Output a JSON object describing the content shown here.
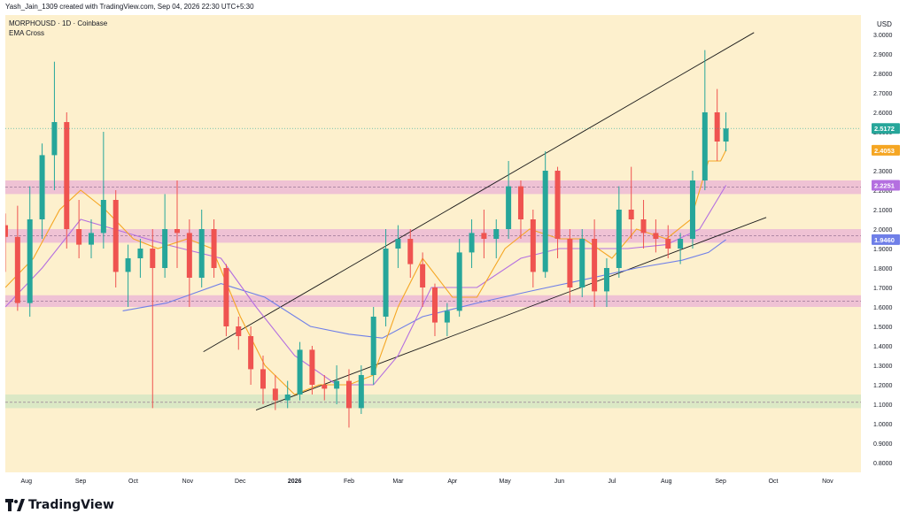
{
  "caption": "Yash_Jain_1309 created with TradingView.com, Sep 04, 2026 22:30 UTC+5:30",
  "header": {
    "symbol_line": "MORPHOUSD · 1D · Coinbase",
    "indicator": "EMA Cross"
  },
  "brand": {
    "name": "TradingView",
    "logo": "tradingview-logo"
  },
  "colors": {
    "background": "#fdf0cd",
    "up": "#26a69a",
    "down": "#ef5350",
    "ema_fast": "#f5a623",
    "ema_mid": "#b46fe0",
    "ema_slow": "#6f7fe8",
    "zone_pink": "#e9b3d6",
    "zone_green": "#cfe6c2",
    "trendline": "#1a1a1a"
  },
  "chart_data": {
    "type": "candlestick",
    "currency": "USD",
    "y_axis": {
      "min": 0.75,
      "max": 3.1,
      "ticks": [
        "0.8000",
        "0.9000",
        "1.0000",
        "1.1000",
        "1.2000",
        "1.3000",
        "1.4000",
        "1.5000",
        "1.6000",
        "1.7000",
        "1.8000",
        "1.9000",
        "2.0000",
        "2.1000",
        "2.2000",
        "2.3000",
        "2.4000",
        "2.5000",
        "2.6000",
        "2.7000",
        "2.8000",
        "2.9000",
        "3.0000"
      ]
    },
    "x_axis": {
      "ticks": [
        {
          "label": "Aug",
          "date": "2025-08-01"
        },
        {
          "label": "Sep",
          "date": "2025-09-01"
        },
        {
          "label": "Oct",
          "date": "2025-10-01"
        },
        {
          "label": "Nov",
          "date": "2025-11-01"
        },
        {
          "label": "Dec",
          "date": "2025-12-01"
        },
        {
          "label": "2026",
          "date": "2026-01-01"
        },
        {
          "label": "Feb",
          "date": "2026-02-01"
        },
        {
          "label": "Mar",
          "date": "2026-03-01"
        },
        {
          "label": "Apr",
          "date": "2026-04-01"
        },
        {
          "label": "May",
          "date": "2026-05-01"
        },
        {
          "label": "Jun",
          "date": "2026-06-01"
        },
        {
          "label": "Jul",
          "date": "2026-07-01"
        },
        {
          "label": "Aug",
          "date": "2026-08-01"
        },
        {
          "label": "Sep",
          "date": "2026-09-01"
        },
        {
          "label": "Oct",
          "date": "2026-10-01"
        },
        {
          "label": "Nov",
          "date": "2026-11-01"
        }
      ],
      "start": "2025-07-20",
      "end": "2026-11-20"
    },
    "price_labels": [
      {
        "value": "2.5172",
        "price": 2.5172,
        "color": "#26a69a"
      },
      {
        "value": "2.4053",
        "price": 2.4053,
        "color": "#f5a623"
      },
      {
        "value": "2.2251",
        "price": 2.2251,
        "color": "#b46fe0"
      },
      {
        "value": "1.9460",
        "price": 1.946,
        "color": "#6f7fe8"
      }
    ],
    "zones": [
      {
        "from": 2.18,
        "to": 2.25,
        "color": "pink",
        "mid_line": 2.215
      },
      {
        "from": 1.93,
        "to": 2.0,
        "color": "pink",
        "mid_line": 1.965
      },
      {
        "from": 1.6,
        "to": 1.66,
        "color": "pink",
        "mid_line": 1.63
      },
      {
        "from": 1.08,
        "to": 1.15,
        "color": "green",
        "mid_line": 1.11
      }
    ],
    "trendlines": [
      {
        "from": {
          "date": "2025-11-10",
          "price": 1.37
        },
        "to": {
          "date": "2026-09-20",
          "price": 3.01
        }
      },
      {
        "from": {
          "date": "2025-12-10",
          "price": 1.07
        },
        "to": {
          "date": "2026-09-27",
          "price": 2.06
        }
      }
    ],
    "ema_fast": [
      [
        "2025-07-20",
        1.7
      ],
      [
        "2025-08-05",
        1.85
      ],
      [
        "2025-08-20",
        2.1
      ],
      [
        "2025-09-01",
        2.2
      ],
      [
        "2025-09-15",
        2.1
      ],
      [
        "2025-10-01",
        1.95
      ],
      [
        "2025-10-15",
        1.9
      ],
      [
        "2025-11-01",
        1.95
      ],
      [
        "2025-11-15",
        1.9
      ],
      [
        "2025-12-01",
        1.55
      ],
      [
        "2025-12-15",
        1.3
      ],
      [
        "2026-01-01",
        1.15
      ],
      [
        "2026-01-15",
        1.2
      ],
      [
        "2026-02-01",
        1.2
      ],
      [
        "2026-02-15",
        1.25
      ],
      [
        "2026-03-01",
        1.6
      ],
      [
        "2026-03-15",
        1.85
      ],
      [
        "2026-04-01",
        1.65
      ],
      [
        "2026-04-15",
        1.65
      ],
      [
        "2026-05-01",
        1.9
      ],
      [
        "2026-05-15",
        2.0
      ],
      [
        "2026-06-01",
        1.95
      ],
      [
        "2026-06-15",
        1.95
      ],
      [
        "2026-07-01",
        1.85
      ],
      [
        "2026-07-15",
        2.0
      ],
      [
        "2026-08-01",
        1.95
      ],
      [
        "2026-08-15",
        2.05
      ],
      [
        "2026-08-25",
        2.35
      ],
      [
        "2026-09-01",
        2.35
      ],
      [
        "2026-09-04",
        2.4053
      ]
    ],
    "ema_mid": [
      [
        "2025-07-20",
        1.6
      ],
      [
        "2025-08-10",
        1.8
      ],
      [
        "2025-09-01",
        2.05
      ],
      [
        "2025-09-20",
        2.0
      ],
      [
        "2025-10-20",
        1.92
      ],
      [
        "2025-11-20",
        1.85
      ],
      [
        "2025-12-10",
        1.6
      ],
      [
        "2026-01-01",
        1.35
      ],
      [
        "2026-01-25",
        1.2
      ],
      [
        "2026-02-15",
        1.2
      ],
      [
        "2026-03-01",
        1.35
      ],
      [
        "2026-03-20",
        1.7
      ],
      [
        "2026-04-15",
        1.7
      ],
      [
        "2026-05-10",
        1.85
      ],
      [
        "2026-06-01",
        1.9
      ],
      [
        "2026-06-20",
        1.9
      ],
      [
        "2026-07-10",
        1.9
      ],
      [
        "2026-08-01",
        1.92
      ],
      [
        "2026-08-20",
        2.0
      ],
      [
        "2026-09-04",
        2.2251
      ]
    ],
    "ema_slow": [
      [
        "2025-09-25",
        1.58
      ],
      [
        "2025-10-20",
        1.62
      ],
      [
        "2025-11-20",
        1.72
      ],
      [
        "2025-12-15",
        1.65
      ],
      [
        "2026-01-10",
        1.5
      ],
      [
        "2026-02-01",
        1.46
      ],
      [
        "2026-02-20",
        1.44
      ],
      [
        "2026-03-15",
        1.55
      ],
      [
        "2026-04-15",
        1.62
      ],
      [
        "2026-05-15",
        1.68
      ],
      [
        "2026-06-15",
        1.74
      ],
      [
        "2026-07-15",
        1.8
      ],
      [
        "2026-08-10",
        1.84
      ],
      [
        "2026-08-25",
        1.88
      ],
      [
        "2026-09-04",
        1.946
      ]
    ],
    "candles": [
      [
        "2025-07-20",
        2.02,
        2.08,
        1.78,
        1.96
      ],
      [
        "2025-07-27",
        1.96,
        2.12,
        1.58,
        1.62
      ],
      [
        "2025-08-03",
        1.62,
        2.22,
        1.55,
        2.05
      ],
      [
        "2025-08-10",
        2.05,
        2.44,
        1.95,
        2.38
      ],
      [
        "2025-08-17",
        2.38,
        2.86,
        2.2,
        2.55
      ],
      [
        "2025-08-24",
        2.55,
        2.6,
        1.9,
        2.0
      ],
      [
        "2025-08-31",
        2.0,
        2.15,
        1.85,
        1.92
      ],
      [
        "2025-09-07",
        1.92,
        2.05,
        1.85,
        1.98
      ],
      [
        "2025-09-14",
        1.98,
        2.5,
        1.9,
        2.15
      ],
      [
        "2025-09-21",
        2.15,
        2.2,
        1.7,
        1.78
      ],
      [
        "2025-09-28",
        1.78,
        1.92,
        1.6,
        1.85
      ],
      [
        "2025-10-05",
        1.85,
        1.95,
        1.75,
        1.9
      ],
      [
        "2025-10-12",
        1.9,
        2.0,
        1.08,
        1.8
      ],
      [
        "2025-10-19",
        1.8,
        2.18,
        1.75,
        2.0
      ],
      [
        "2025-10-26",
        2.0,
        2.25,
        1.8,
        1.98
      ],
      [
        "2025-11-02",
        1.98,
        2.05,
        1.6,
        1.75
      ],
      [
        "2025-11-09",
        1.75,
        2.1,
        1.7,
        2.0
      ],
      [
        "2025-11-16",
        2.0,
        2.05,
        1.75,
        1.8
      ],
      [
        "2025-11-23",
        1.8,
        1.82,
        1.45,
        1.5
      ],
      [
        "2025-11-30",
        1.5,
        1.55,
        1.38,
        1.45
      ],
      [
        "2025-12-07",
        1.45,
        1.5,
        1.2,
        1.28
      ],
      [
        "2025-12-14",
        1.28,
        1.35,
        1.1,
        1.18
      ],
      [
        "2025-12-21",
        1.18,
        1.25,
        1.07,
        1.12
      ],
      [
        "2025-12-28",
        1.12,
        1.22,
        1.08,
        1.15
      ],
      [
        "2026-01-04",
        1.15,
        1.42,
        1.12,
        1.38
      ],
      [
        "2026-01-11",
        1.38,
        1.4,
        1.15,
        1.2
      ],
      [
        "2026-01-18",
        1.2,
        1.25,
        1.12,
        1.18
      ],
      [
        "2026-01-25",
        1.18,
        1.3,
        1.1,
        1.22
      ],
      [
        "2026-02-01",
        1.22,
        1.28,
        0.98,
        1.08
      ],
      [
        "2026-02-08",
        1.08,
        1.3,
        1.05,
        1.25
      ],
      [
        "2026-02-15",
        1.25,
        1.6,
        1.2,
        1.55
      ],
      [
        "2026-02-22",
        1.55,
        2.0,
        1.5,
        1.9
      ],
      [
        "2026-03-01",
        1.9,
        2.02,
        1.8,
        1.95
      ],
      [
        "2026-03-08",
        1.95,
        2.0,
        1.75,
        1.82
      ],
      [
        "2026-03-15",
        1.82,
        1.88,
        1.6,
        1.7
      ],
      [
        "2026-03-22",
        1.7,
        1.72,
        1.45,
        1.52
      ],
      [
        "2026-03-29",
        1.52,
        1.62,
        1.45,
        1.58
      ],
      [
        "2026-04-05",
        1.58,
        1.95,
        1.55,
        1.88
      ],
      [
        "2026-04-12",
        1.88,
        2.05,
        1.8,
        1.98
      ],
      [
        "2026-04-19",
        1.98,
        2.1,
        1.85,
        1.95
      ],
      [
        "2026-04-26",
        1.95,
        2.05,
        1.85,
        2.0
      ],
      [
        "2026-05-03",
        2.0,
        2.35,
        1.95,
        2.22
      ],
      [
        "2026-05-10",
        2.22,
        2.25,
        1.95,
        2.05
      ],
      [
        "2026-05-17",
        2.05,
        2.1,
        1.7,
        1.78
      ],
      [
        "2026-05-24",
        1.78,
        2.4,
        1.75,
        2.3
      ],
      [
        "2026-05-31",
        2.3,
        2.32,
        1.85,
        1.95
      ],
      [
        "2026-06-07",
        1.95,
        2.0,
        1.62,
        1.7
      ],
      [
        "2026-06-14",
        1.7,
        2.0,
        1.65,
        1.95
      ],
      [
        "2026-06-21",
        1.95,
        2.05,
        1.6,
        1.68
      ],
      [
        "2026-06-28",
        1.68,
        1.85,
        1.6,
        1.8
      ],
      [
        "2026-07-05",
        1.8,
        2.22,
        1.75,
        2.1
      ],
      [
        "2026-07-12",
        2.1,
        2.32,
        1.95,
        2.05
      ],
      [
        "2026-07-19",
        2.05,
        2.15,
        1.9,
        1.98
      ],
      [
        "2026-07-26",
        1.98,
        2.05,
        1.88,
        1.95
      ],
      [
        "2026-08-02",
        1.95,
        2.02,
        1.85,
        1.9
      ],
      [
        "2026-08-09",
        1.9,
        1.98,
        1.82,
        1.95
      ],
      [
        "2026-08-16",
        1.95,
        2.3,
        1.9,
        2.25
      ],
      [
        "2026-08-23",
        2.25,
        2.92,
        2.2,
        2.6
      ],
      [
        "2026-08-30",
        2.6,
        2.72,
        2.35,
        2.45
      ],
      [
        "2026-09-04",
        2.45,
        2.6,
        2.4,
        2.5172
      ]
    ]
  }
}
